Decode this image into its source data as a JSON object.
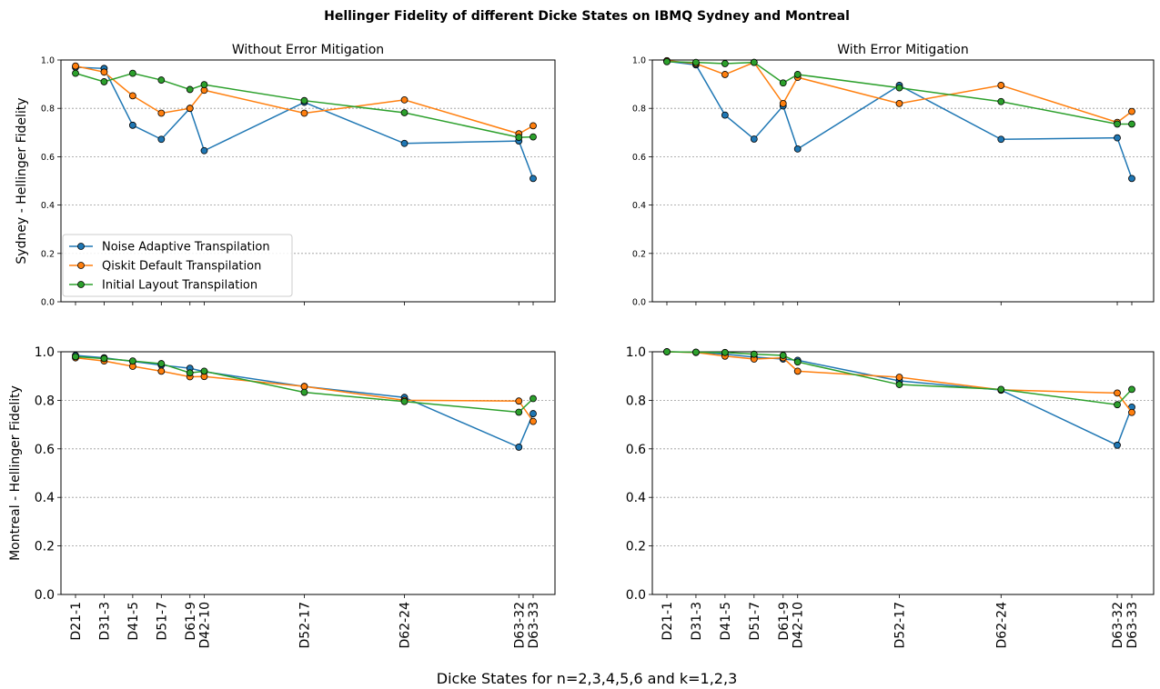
{
  "figure": {
    "title": "Hellinger Fidelity of different Dicke States on IBMQ Sydney and Montreal",
    "xlabel": "Dicke States for n=2,3,4,5,6 and k=1,2,3"
  },
  "chart_data": [
    {
      "type": "line",
      "title": "Without Error Mitigation",
      "ylabel": "Sydney - Hellinger Fidelity",
      "ylim": [
        0.0,
        1.0
      ],
      "yticks": [
        "0.0",
        "0.2",
        "0.4",
        "0.6",
        "0.8",
        "1.0"
      ],
      "x": [
        1,
        2,
        3,
        4,
        5,
        5.5,
        9,
        12.5,
        16.5,
        17
      ],
      "categories": [
        "D21-1",
        "D31-3",
        "D41-5",
        "D51-7",
        "D61-9",
        "D42-10",
        "D52-17",
        "D62-24",
        "D63-32",
        "D63-33"
      ],
      "grid": "y-dotted",
      "legend": "lower-left",
      "series": [
        {
          "name": "Noise Adaptive Transpilation",
          "color": "#1f77b4",
          "values": [
            0.97,
            0.965,
            0.73,
            0.672,
            0.8,
            0.625,
            0.825,
            0.655,
            0.665,
            0.51
          ]
        },
        {
          "name": "Qiskit Default Transpilation",
          "color": "#ff7f0e",
          "values": [
            0.975,
            0.95,
            0.852,
            0.78,
            0.8,
            0.875,
            0.78,
            0.835,
            0.695,
            0.728
          ]
        },
        {
          "name": "Initial Layout Transpilation",
          "color": "#2ca02c",
          "values": [
            0.945,
            0.91,
            0.945,
            0.917,
            0.878,
            0.898,
            0.832,
            0.782,
            0.68,
            0.682
          ]
        }
      ]
    },
    {
      "type": "line",
      "title": "With Error Mitigation",
      "ylabel": "",
      "ylim": [
        0.0,
        1.0
      ],
      "yticks": [
        "0.0",
        "0.2",
        "0.4",
        "0.6",
        "0.8",
        "1.0"
      ],
      "x": [
        1,
        2,
        3,
        4,
        5,
        5.5,
        9,
        12.5,
        16.5,
        17
      ],
      "categories": [
        "D21-1",
        "D31-3",
        "D41-5",
        "D51-7",
        "D61-9",
        "D42-10",
        "D52-17",
        "D62-24",
        "D63-32",
        "D63-33"
      ],
      "grid": "y-dotted",
      "series": [
        {
          "name": "Noise Adaptive Transpilation",
          "color": "#1f77b4",
          "values": [
            0.995,
            0.98,
            0.772,
            0.673,
            0.81,
            0.632,
            0.895,
            0.672,
            0.678,
            0.51
          ]
        },
        {
          "name": "Qiskit Default Transpilation",
          "color": "#ff7f0e",
          "values": [
            0.997,
            0.985,
            0.94,
            0.99,
            0.82,
            0.928,
            0.82,
            0.895,
            0.742,
            0.787
          ]
        },
        {
          "name": "Initial Layout Transpilation",
          "color": "#2ca02c",
          "values": [
            0.993,
            0.99,
            0.985,
            0.99,
            0.905,
            0.94,
            0.885,
            0.828,
            0.735,
            0.735
          ]
        }
      ]
    },
    {
      "type": "line",
      "title": "",
      "ylabel": "Montreal - Hellinger Fidelity",
      "ylim": [
        0.0,
        1.0
      ],
      "yticks": [
        "0.0",
        "0.2",
        "0.4",
        "0.6",
        "0.8",
        "1.0"
      ],
      "x": [
        1,
        2,
        3,
        4,
        5,
        5.5,
        9,
        12.5,
        16.5,
        17
      ],
      "categories": [
        "D21-1",
        "D31-3",
        "D41-5",
        "D51-7",
        "D61-9",
        "D42-10",
        "D52-17",
        "D62-24",
        "D63-32",
        "D63-33"
      ],
      "grid": "y-dotted",
      "series": [
        {
          "name": "Noise Adaptive Transpilation",
          "color": "#1f77b4",
          "values": [
            0.985,
            0.975,
            0.96,
            0.945,
            0.932,
            0.918,
            0.857,
            0.812,
            0.607,
            0.745
          ]
        },
        {
          "name": "Qiskit Default Transpilation",
          "color": "#ff7f0e",
          "values": [
            0.975,
            0.962,
            0.94,
            0.92,
            0.897,
            0.898,
            0.857,
            0.8,
            0.797,
            0.713
          ]
        },
        {
          "name": "Initial Layout Transpilation",
          "color": "#2ca02c",
          "values": [
            0.98,
            0.972,
            0.962,
            0.951,
            0.913,
            0.92,
            0.833,
            0.795,
            0.751,
            0.807
          ]
        }
      ]
    },
    {
      "type": "line",
      "title": "",
      "ylabel": "",
      "ylim": [
        0.0,
        1.0
      ],
      "yticks": [
        "0.0",
        "0.2",
        "0.4",
        "0.6",
        "0.8",
        "1.0"
      ],
      "x": [
        1,
        2,
        3,
        4,
        5,
        5.5,
        9,
        12.5,
        16.5,
        17
      ],
      "categories": [
        "D21-1",
        "D31-3",
        "D41-5",
        "D51-7",
        "D61-9",
        "D42-10",
        "D52-17",
        "D62-24",
        "D63-32",
        "D63-33"
      ],
      "grid": "y-dotted",
      "series": [
        {
          "name": "Noise Adaptive Transpilation",
          "color": "#1f77b4",
          "values": [
            1.0,
            0.998,
            0.99,
            0.978,
            0.97,
            0.965,
            0.88,
            0.842,
            0.615,
            0.772
          ]
        },
        {
          "name": "Qiskit Default Transpilation",
          "color": "#ff7f0e",
          "values": [
            1.0,
            0.997,
            0.982,
            0.97,
            0.975,
            0.92,
            0.895,
            0.843,
            0.83,
            0.75
          ]
        },
        {
          "name": "Initial Layout Transpilation",
          "color": "#2ca02c",
          "values": [
            1.0,
            0.998,
            0.997,
            0.99,
            0.985,
            0.958,
            0.865,
            0.845,
            0.782,
            0.845
          ]
        }
      ]
    }
  ]
}
